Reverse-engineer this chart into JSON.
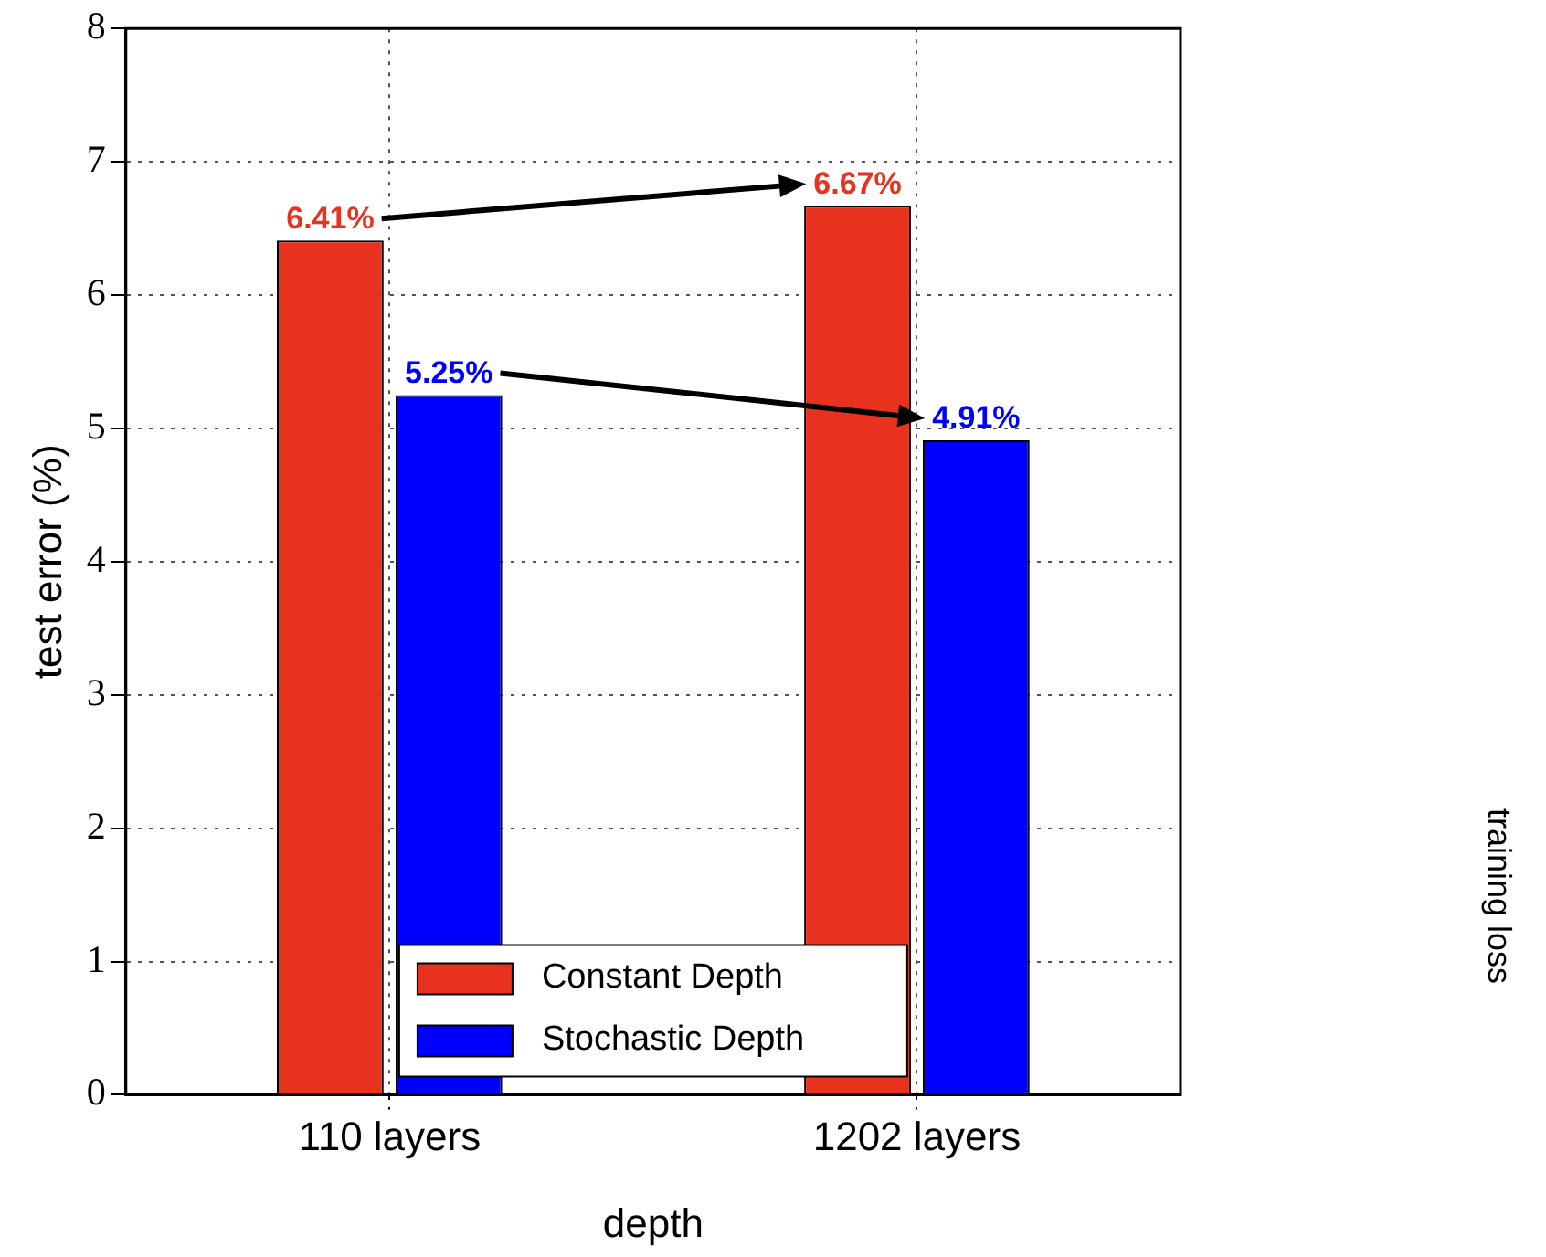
{
  "chart_data": {
    "type": "bar",
    "xlabel": "depth",
    "ylabel": "test error (%)",
    "categories": [
      "110 layers",
      "1202 layers"
    ],
    "series": [
      {
        "name": "Constant Depth",
        "color": "#e8321e",
        "values": [
          6.41,
          6.67
        ],
        "value_labels": [
          "6.41%",
          "6.67%"
        ]
      },
      {
        "name": "Stochastic Depth",
        "color": "#0000ff",
        "values": [
          5.25,
          4.91
        ],
        "value_labels": [
          "5.25%",
          "4.91%"
        ]
      }
    ],
    "ylim": [
      0,
      8
    ],
    "yticks": [
      0,
      1,
      2,
      3,
      4,
      5,
      6,
      7,
      8
    ],
    "grid": true,
    "legend": "bottom",
    "annotations": [
      "training loss"
    ]
  }
}
